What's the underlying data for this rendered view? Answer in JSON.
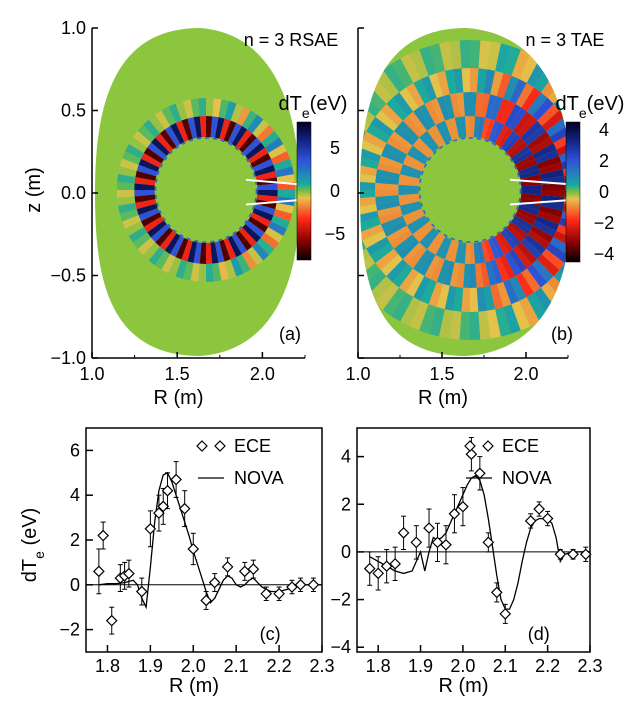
{
  "chart_data": [
    {
      "panel": "(a)",
      "type": "heatmap",
      "title": "n = 3 RSAE",
      "xlabel": "R (m)",
      "ylabel": "z (m)",
      "xlim": [
        1.0,
        2.25
      ],
      "ylim": [
        -1.0,
        1.0
      ],
      "x_ticks": [
        "1.0",
        "1.5",
        "2.0"
      ],
      "y_ticks": [
        "1.0",
        "0.5",
        "0.0",
        "−0.5",
        "−1.0"
      ],
      "colorbar": {
        "label": "dTe(eV)",
        "ticks": [
          "5",
          "0",
          "−5"
        ],
        "range": [
          -8,
          8
        ]
      },
      "mode": {
        "n": 3,
        "location": "near inner surface",
        "poloidal_lobes": 18
      }
    },
    {
      "panel": "(b)",
      "type": "heatmap",
      "title": "n = 3 TAE",
      "xlabel": "R (m)",
      "xlim": [
        1.0,
        2.25
      ],
      "ylim": [
        -1.0,
        1.0
      ],
      "x_ticks": [
        "1.0",
        "1.5",
        "2.0"
      ],
      "colorbar": {
        "label": "dTe(eV)",
        "ticks": [
          "4",
          "2",
          "0",
          "−2",
          "−4"
        ],
        "range": [
          -4.5,
          4.5
        ]
      },
      "mode": {
        "n": 3,
        "location": "broad, outboard",
        "poloidal_lobes": 22
      }
    },
    {
      "panel": "(c)",
      "type": "scatter",
      "xlabel": "R (m)",
      "ylabel": "dTe (eV)",
      "xlim": [
        1.75,
        2.3
      ],
      "ylim": [
        -3.0,
        7.0
      ],
      "x_ticks": [
        "1.8",
        "1.9",
        "2.0",
        "2.1",
        "2.2",
        "2.3"
      ],
      "y_ticks": [
        "6",
        "4",
        "2",
        "0",
        "−2"
      ],
      "legend": [
        "ECE",
        "NOVA"
      ],
      "series": [
        {
          "name": "ECE",
          "points": [
            {
              "x": 1.78,
              "y": 0.6,
              "err": 1.0
            },
            {
              "x": 1.79,
              "y": 2.2,
              "err": 0.6
            },
            {
              "x": 1.81,
              "y": -1.6,
              "err": 0.6
            },
            {
              "x": 1.83,
              "y": 0.3,
              "err": 0.6
            },
            {
              "x": 1.84,
              "y": 0.4,
              "err": 0.6
            },
            {
              "x": 1.85,
              "y": 0.5,
              "err": 0.6
            },
            {
              "x": 1.88,
              "y": -0.3,
              "err": 0.6
            },
            {
              "x": 1.9,
              "y": 2.5,
              "err": 0.8
            },
            {
              "x": 1.92,
              "y": 3.2,
              "err": 0.8
            },
            {
              "x": 1.93,
              "y": 3.5,
              "err": 0.8
            },
            {
              "x": 1.94,
              "y": 4.2,
              "err": 0.8
            },
            {
              "x": 1.96,
              "y": 4.7,
              "err": 0.8
            },
            {
              "x": 1.98,
              "y": 3.4,
              "err": 0.8
            },
            {
              "x": 2.0,
              "y": 1.6,
              "err": 0.7
            },
            {
              "x": 2.03,
              "y": -0.7,
              "err": 0.4
            },
            {
              "x": 2.05,
              "y": 0.1,
              "err": 0.4
            },
            {
              "x": 2.08,
              "y": 0.8,
              "err": 0.4
            },
            {
              "x": 2.12,
              "y": 0.6,
              "err": 0.4
            },
            {
              "x": 2.14,
              "y": 0.7,
              "err": 0.4
            },
            {
              "x": 2.17,
              "y": -0.4,
              "err": 0.3
            },
            {
              "x": 2.2,
              "y": -0.4,
              "err": 0.3
            },
            {
              "x": 2.23,
              "y": -0.1,
              "err": 0.3
            },
            {
              "x": 2.25,
              "y": 0.0,
              "err": 0.3
            },
            {
              "x": 2.28,
              "y": 0.0,
              "err": 0.3
            }
          ]
        },
        {
          "name": "NOVA",
          "x": [
            1.78,
            1.8,
            1.82,
            1.84,
            1.86,
            1.87,
            1.88,
            1.89,
            1.9,
            1.91,
            1.92,
            1.93,
            1.94,
            1.95,
            1.96,
            1.97,
            1.98,
            1.99,
            2.0,
            2.01,
            2.02,
            2.03,
            2.04,
            2.05,
            2.06,
            2.07,
            2.08,
            2.09,
            2.1,
            2.11,
            2.12,
            2.13,
            2.14,
            2.15,
            2.16,
            2.18,
            2.2,
            2.22,
            2.24,
            2.26,
            2.28,
            2.3
          ],
          "y": [
            0.0,
            0.05,
            0.05,
            0.1,
            0.2,
            0.0,
            -0.6,
            -1.0,
            0.8,
            2.8,
            4.2,
            4.9,
            5.0,
            4.6,
            4.0,
            3.4,
            2.8,
            2.2,
            1.5,
            0.9,
            0.3,
            -0.3,
            -0.8,
            -0.6,
            -0.2,
            0.2,
            0.4,
            0.3,
            0.0,
            -0.1,
            0.0,
            0.2,
            0.3,
            0.1,
            -0.1,
            -0.3,
            -0.3,
            -0.2,
            -0.1,
            0.0,
            0.0,
            0.0
          ]
        }
      ]
    },
    {
      "panel": "(d)",
      "type": "scatter",
      "xlabel": "R (m)",
      "xlim": [
        1.75,
        2.3
      ],
      "ylim": [
        -4.2,
        5.2
      ],
      "x_ticks": [
        "1.8",
        "1.9",
        "2.0",
        "2.1",
        "2.2",
        "2.3"
      ],
      "y_ticks": [
        "4",
        "2",
        "0",
        "−2",
        "−4"
      ],
      "legend": [
        "ECE",
        "NOVA"
      ],
      "series": [
        {
          "name": "ECE",
          "points": [
            {
              "x": 1.78,
              "y": -0.7,
              "err": 0.7
            },
            {
              "x": 1.8,
              "y": -0.9,
              "err": 0.7
            },
            {
              "x": 1.82,
              "y": -0.6,
              "err": 0.7
            },
            {
              "x": 1.84,
              "y": -0.5,
              "err": 0.7
            },
            {
              "x": 1.86,
              "y": 0.8,
              "err": 0.7
            },
            {
              "x": 1.89,
              "y": 0.4,
              "err": 0.7
            },
            {
              "x": 1.92,
              "y": 1.0,
              "err": 0.8
            },
            {
              "x": 1.94,
              "y": 0.4,
              "err": 0.8
            },
            {
              "x": 1.96,
              "y": 0.3,
              "err": 0.8
            },
            {
              "x": 1.98,
              "y": 1.6,
              "err": 0.8
            },
            {
              "x": 2.0,
              "y": 1.9,
              "err": 0.8
            },
            {
              "x": 2.02,
              "y": 4.1,
              "err": 0.7
            },
            {
              "x": 2.04,
              "y": 3.3,
              "err": 0.7
            },
            {
              "x": 2.06,
              "y": 0.4,
              "err": 0.4
            },
            {
              "x": 2.08,
              "y": -1.7,
              "err": 0.4
            },
            {
              "x": 2.1,
              "y": -2.6,
              "err": 0.4
            },
            {
              "x": 2.16,
              "y": 1.3,
              "err": 0.3
            },
            {
              "x": 2.18,
              "y": 1.8,
              "err": 0.3
            },
            {
              "x": 2.2,
              "y": 1.4,
              "err": 0.3
            },
            {
              "x": 2.23,
              "y": -0.1,
              "err": 0.2
            },
            {
              "x": 2.26,
              "y": -0.1,
              "err": 0.2
            },
            {
              "x": 2.29,
              "y": -0.1,
              "err": 0.3
            }
          ]
        },
        {
          "name": "NOVA",
          "x": [
            1.78,
            1.8,
            1.82,
            1.84,
            1.86,
            1.88,
            1.9,
            1.91,
            1.92,
            1.93,
            1.94,
            1.95,
            1.96,
            1.97,
            1.98,
            1.99,
            2.0,
            2.01,
            2.02,
            2.03,
            2.04,
            2.05,
            2.06,
            2.07,
            2.08,
            2.09,
            2.1,
            2.11,
            2.12,
            2.13,
            2.14,
            2.15,
            2.16,
            2.17,
            2.18,
            2.19,
            2.2,
            2.21,
            2.22,
            2.23,
            2.24,
            2.26,
            2.28,
            2.3
          ],
          "y": [
            -0.2,
            -0.4,
            -0.6,
            -0.8,
            -0.9,
            -0.8,
            0.0,
            -0.8,
            0.0,
            0.6,
            0.5,
            0.6,
            0.8,
            1.2,
            1.6,
            2.0,
            2.4,
            2.8,
            3.1,
            3.2,
            3.0,
            2.4,
            1.4,
            0.2,
            -1.0,
            -2.0,
            -2.4,
            -2.4,
            -2.0,
            -1.3,
            -0.4,
            0.4,
            1.0,
            1.3,
            1.4,
            1.4,
            1.4,
            1.2,
            0.6,
            -0.4,
            -0.1,
            0.0,
            0.0,
            0.0
          ]
        }
      ]
    }
  ]
}
